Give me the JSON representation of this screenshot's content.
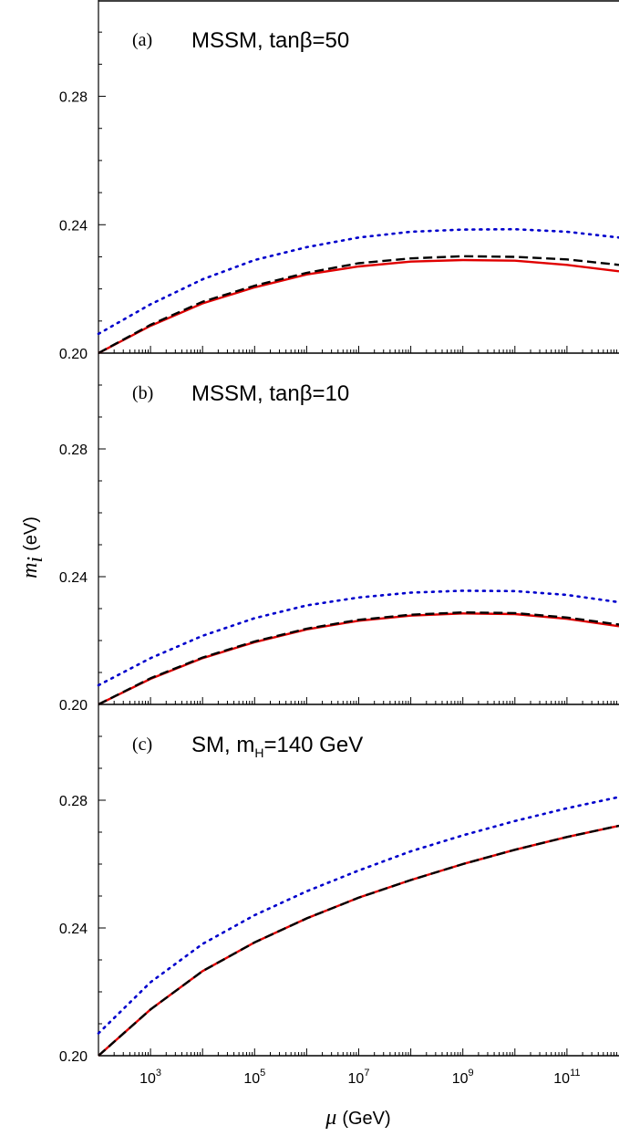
{
  "chart_data": [
    {
      "type": "line",
      "panel": "(a)",
      "title": "MSSM, tanβ=50",
      "x_scale": "log",
      "xlim": [
        100,
        1000000000000.0
      ],
      "ylim": [
        0.2,
        0.31
      ],
      "x": [
        100,
        1000,
        10000.0,
        100000.0,
        1000000.0,
        10000000.0,
        100000000.0,
        1000000000.0,
        10000000000.0,
        100000000000.0,
        1000000000000.0
      ],
      "series": [
        {
          "style": "solid",
          "color": "#e00000",
          "values": [
            0.2,
            0.2085,
            0.2155,
            0.2205,
            0.2245,
            0.227,
            0.2285,
            0.229,
            0.2288,
            0.2275,
            0.2255
          ]
        },
        {
          "style": "dashed",
          "color": "#000000",
          "values": [
            0.2,
            0.2088,
            0.216,
            0.221,
            0.225,
            0.228,
            0.2295,
            0.2302,
            0.23,
            0.2292,
            0.2275
          ]
        },
        {
          "style": "dotted",
          "color": "#0000cc",
          "values": [
            0.206,
            0.2152,
            0.223,
            0.229,
            0.233,
            0.236,
            0.2378,
            0.2385,
            0.2386,
            0.2378,
            0.236
          ]
        }
      ]
    },
    {
      "type": "line",
      "panel": "(b)",
      "title": "MSSM, tanβ=10",
      "x_scale": "log",
      "xlim": [
        100,
        1000000000000.0
      ],
      "ylim": [
        0.2,
        0.31
      ],
      "x": [
        100,
        1000,
        10000.0,
        100000.0,
        1000000.0,
        10000000.0,
        100000000.0,
        1000000000.0,
        10000000000.0,
        100000000000.0,
        1000000000000.0
      ],
      "series": [
        {
          "style": "solid",
          "color": "#e00000",
          "values": [
            0.2,
            0.208,
            0.2145,
            0.2195,
            0.2235,
            0.2262,
            0.2278,
            0.2285,
            0.2283,
            0.2268,
            0.2245
          ]
        },
        {
          "style": "dashed",
          "color": "#000000",
          "values": [
            0.2,
            0.2082,
            0.2147,
            0.2197,
            0.2237,
            0.2265,
            0.2281,
            0.2288,
            0.2286,
            0.2272,
            0.225
          ]
        },
        {
          "style": "dotted",
          "color": "#0000cc",
          "values": [
            0.206,
            0.2145,
            0.2215,
            0.227,
            0.231,
            0.2335,
            0.235,
            0.2356,
            0.2355,
            0.2343,
            0.232
          ]
        }
      ]
    },
    {
      "type": "line",
      "panel": "(c)",
      "title": "SM, m",
      "title_sub": "H",
      "title_tail": "=140 GeV",
      "x_scale": "log",
      "xlim": [
        100,
        1000000000000.0
      ],
      "ylim": [
        0.2,
        0.31
      ],
      "xlabel": "μ",
      "xlabel_unit": "(GeV)",
      "x": [
        100,
        1000,
        10000.0,
        100000.0,
        1000000.0,
        10000000.0,
        100000000.0,
        1000000000.0,
        10000000000.0,
        100000000000.0,
        1000000000000.0
      ],
      "series": [
        {
          "style": "solid",
          "color": "#e00000",
          "values": [
            0.2,
            0.2145,
            0.2265,
            0.2355,
            0.243,
            0.2495,
            0.255,
            0.26,
            0.2645,
            0.2685,
            0.272
          ]
        },
        {
          "style": "dashed",
          "color": "#000000",
          "values": [
            0.2,
            0.2145,
            0.2265,
            0.2355,
            0.243,
            0.2495,
            0.255,
            0.26,
            0.2645,
            0.2685,
            0.272
          ]
        },
        {
          "style": "dotted",
          "color": "#0000cc",
          "values": [
            0.207,
            0.223,
            0.235,
            0.244,
            0.2515,
            0.258,
            0.264,
            0.269,
            0.2735,
            0.2775,
            0.281
          ]
        }
      ]
    }
  ],
  "y_ticks": [
    "0.20",
    "0.24",
    "0.28"
  ],
  "x_ticks": [
    {
      "base": "10",
      "exp": "3"
    },
    {
      "base": "10",
      "exp": "5"
    },
    {
      "base": "10",
      "exp": "7"
    },
    {
      "base": "10",
      "exp": "9"
    },
    {
      "base": "10",
      "exp": "11"
    }
  ],
  "ylabel": "m",
  "ylabel_sub": "i",
  "ylabel_unit": "(eV)"
}
